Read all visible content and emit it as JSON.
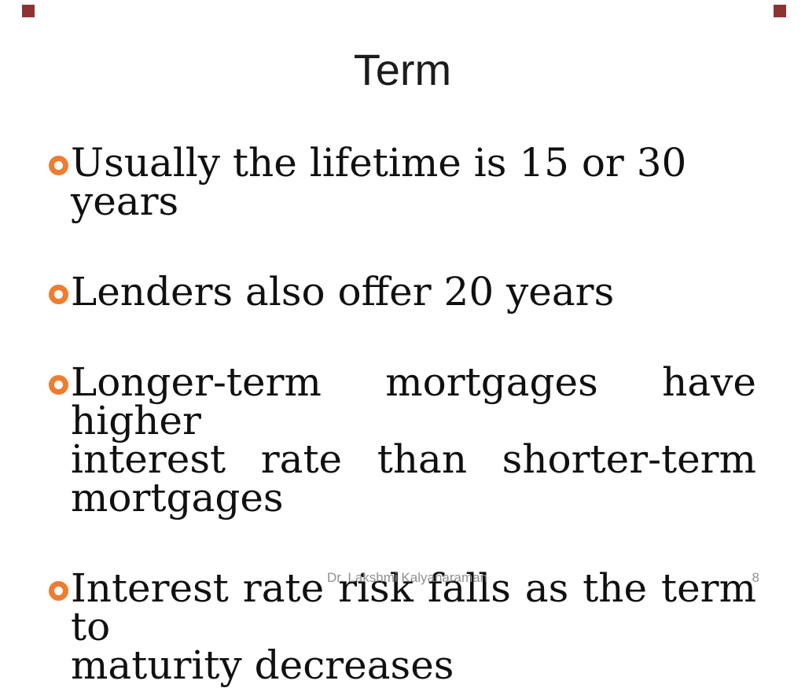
{
  "slide": {
    "title": "Term",
    "bullets": [
      {
        "lines": [
          {
            "text": "Usually the lifetime is 15 or 30 years"
          }
        ]
      },
      {
        "lines": [
          {
            "text": "Lenders also offer 20 years"
          }
        ]
      },
      {
        "lines": [
          {
            "text": "Longer-term mortgages have higher"
          },
          {
            "text": "interest rate than shorter-term"
          },
          {
            "text": "mortgages"
          }
        ]
      },
      {
        "lines": [
          {
            "text": "Interest rate risk falls as the term to"
          },
          {
            "text": "maturity decreases"
          }
        ]
      }
    ],
    "footer": {
      "author": "Dr. Lakshmi Kalyanaraman",
      "page_number": "8"
    },
    "colors": {
      "bullet_orange": "#ED7D31",
      "corner_square": "#8D3331",
      "body_text": "#101010",
      "footer_gray": "#909090"
    }
  }
}
